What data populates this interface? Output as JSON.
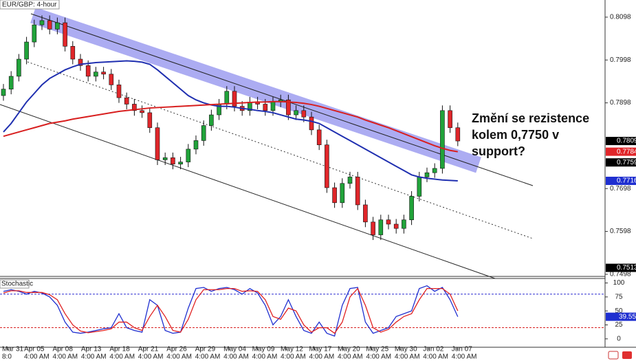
{
  "chart_data": [
    {
      "type": "candlestick",
      "title": "EUR/GBP: 4-hour",
      "annotation": [
        "Změní se rezistence",
        "kolem 0,7750 v",
        "support?"
      ],
      "ylim": [
        0.7493,
        0.8138
      ],
      "yticks": [
        0.8098,
        0.7998,
        0.7898,
        0.7698,
        0.7598,
        0.7498
      ],
      "up_color": "#21a33a",
      "down_color": "#e0262a",
      "open": [
        0.7915,
        0.793,
        0.796,
        0.8,
        0.804,
        0.808,
        0.809,
        0.807,
        0.8085,
        0.803,
        0.8,
        0.7985,
        0.796,
        0.797,
        0.7965,
        0.794,
        0.791,
        0.7895,
        0.788,
        0.7875,
        0.784,
        0.7765,
        0.777,
        0.7755,
        0.776,
        0.779,
        0.781,
        0.7845,
        0.787,
        0.7895,
        0.7925,
        0.789,
        0.788,
        0.79,
        0.7895,
        0.788,
        0.79,
        0.7905,
        0.787,
        0.788,
        0.7865,
        0.7835,
        0.78,
        0.77,
        0.7665,
        0.771,
        0.7725,
        0.766,
        0.762,
        0.759,
        0.7625,
        0.7615,
        0.7605,
        0.7625,
        0.768,
        0.7725,
        0.7735,
        0.7745,
        0.788,
        0.784
      ],
      "high": [
        0.7942,
        0.7972,
        0.8012,
        0.8052,
        0.8092,
        0.8102,
        0.8102,
        0.8097,
        0.8097,
        0.8042,
        0.8012,
        0.7997,
        0.7982,
        0.7982,
        0.7977,
        0.7952,
        0.7922,
        0.7907,
        0.7892,
        0.7887,
        0.7852,
        0.7782,
        0.7782,
        0.7772,
        0.7802,
        0.7822,
        0.7857,
        0.7882,
        0.7907,
        0.7937,
        0.7937,
        0.7902,
        0.7912,
        0.7912,
        0.7907,
        0.7912,
        0.7917,
        0.7917,
        0.7892,
        0.7892,
        0.7877,
        0.7847,
        0.7812,
        0.7712,
        0.7722,
        0.7737,
        0.7737,
        0.7672,
        0.7632,
        0.7637,
        0.7637,
        0.7627,
        0.7637,
        0.7692,
        0.7737,
        0.7747,
        0.7757,
        0.7892,
        0.7892,
        0.7852
      ],
      "low": [
        0.7903,
        0.7918,
        0.7948,
        0.7988,
        0.8028,
        0.8068,
        0.8058,
        0.8058,
        0.8018,
        0.7988,
        0.7973,
        0.7948,
        0.7948,
        0.7953,
        0.7928,
        0.7898,
        0.7883,
        0.7868,
        0.7863,
        0.7828,
        0.7753,
        0.7753,
        0.7743,
        0.7743,
        0.7748,
        0.7778,
        0.7798,
        0.7833,
        0.7858,
        0.7883,
        0.7878,
        0.7868,
        0.7868,
        0.7883,
        0.7868,
        0.7868,
        0.7888,
        0.7858,
        0.7858,
        0.7853,
        0.7823,
        0.7788,
        0.7688,
        0.7653,
        0.7653,
        0.7698,
        0.7648,
        0.7608,
        0.7578,
        0.7578,
        0.7603,
        0.7593,
        0.7593,
        0.7613,
        0.7668,
        0.7713,
        0.7723,
        0.7733,
        0.7828,
        0.7797
      ],
      "close": [
        0.793,
        0.796,
        0.8,
        0.804,
        0.808,
        0.809,
        0.807,
        0.8085,
        0.803,
        0.8,
        0.7985,
        0.796,
        0.797,
        0.7965,
        0.794,
        0.791,
        0.7895,
        0.788,
        0.7875,
        0.784,
        0.7765,
        0.777,
        0.7755,
        0.776,
        0.779,
        0.781,
        0.7845,
        0.787,
        0.7895,
        0.7925,
        0.789,
        0.788,
        0.79,
        0.7895,
        0.788,
        0.79,
        0.7905,
        0.787,
        0.788,
        0.7865,
        0.7835,
        0.78,
        0.77,
        0.7665,
        0.771,
        0.7725,
        0.766,
        0.762,
        0.759,
        0.7625,
        0.7615,
        0.7605,
        0.7625,
        0.768,
        0.7725,
        0.7735,
        0.7745,
        0.788,
        0.784,
        0.7809
      ],
      "lines": [
        {
          "color": "#1f2fb0",
          "values": [
            0.783,
            0.785,
            0.7875,
            0.79,
            0.792,
            0.794,
            0.7955,
            0.7965,
            0.7975,
            0.7982,
            0.7988,
            0.799,
            0.7992,
            0.7993,
            0.7994,
            0.7995,
            0.7996,
            0.7995,
            0.7993,
            0.7988,
            0.7975,
            0.796,
            0.7945,
            0.793,
            0.7915,
            0.7905,
            0.7898,
            0.7893,
            0.789,
            0.789,
            0.7888,
            0.7885,
            0.7883,
            0.788,
            0.7878,
            0.7875,
            0.787,
            0.7865,
            0.786,
            0.7858,
            0.7855,
            0.785,
            0.784,
            0.783,
            0.782,
            0.781,
            0.78,
            0.779,
            0.778,
            0.777,
            0.776,
            0.775,
            0.774,
            0.773,
            0.7725,
            0.7722,
            0.772,
            0.7718,
            0.7717,
            0.7716
          ]
        },
        {
          "color": "#d81e1e",
          "values": [
            0.782,
            0.7825,
            0.783,
            0.7835,
            0.784,
            0.7845,
            0.785,
            0.7853,
            0.7856,
            0.786,
            0.7863,
            0.7866,
            0.7869,
            0.7872,
            0.7875,
            0.7878,
            0.788,
            0.7882,
            0.7884,
            0.7886,
            0.7887,
            0.7888,
            0.7889,
            0.789,
            0.7891,
            0.7892,
            0.7893,
            0.7894,
            0.7895,
            0.7896,
            0.7897,
            0.7898,
            0.7899,
            0.79,
            0.79,
            0.7901,
            0.7901,
            0.79,
            0.7899,
            0.7897,
            0.7894,
            0.789,
            0.7885,
            0.788,
            0.7875,
            0.787,
            0.7865,
            0.7858,
            0.7852,
            0.7846,
            0.784,
            0.7833,
            0.7826,
            0.7819,
            0.7812,
            0.7805,
            0.7798,
            0.7792,
            0.7787,
            0.7784
          ]
        }
      ],
      "price_labels": [
        {
          "value": 0.7809,
          "color": "#000000"
        },
        {
          "value": 0.7784,
          "color": "#e0262a"
        },
        {
          "value": 0.7759,
          "color": "#000000"
        },
        {
          "value": 0.7716,
          "color": "#1f2fd0"
        },
        {
          "value": 0.7513,
          "color": "#000000"
        }
      ],
      "dates": [
        "Mar 31",
        "Apr 05",
        "Apr 08",
        "Apr 13",
        "Apr 18",
        "Apr 21",
        "Apr 26",
        "Apr 29",
        "May 04",
        "May 09",
        "May 12",
        "May 17",
        "May 20",
        "May 25",
        "May 30",
        "Jun 02",
        "Jun 07"
      ],
      "times": [
        "8:0",
        "4:00 AM",
        "4:00 AM",
        "4:00 AM",
        "4:00 AM",
        "4:00 AM",
        "4:00 AM",
        "4:00 AM",
        "4:00 AM",
        "4:00 AM",
        "4:00 AM",
        "4:00 AM",
        "4:00 AM",
        "4:00 AM",
        "4:00 AM",
        "4:00 AM",
        "4:00 AM"
      ]
    },
    {
      "type": "line",
      "title": "Stochastic",
      "ylim": [
        -15,
        108
      ],
      "yticks": [
        100,
        75,
        50,
        25,
        0
      ],
      "levels": [
        {
          "value": 80,
          "color": "#2b2bd0"
        },
        {
          "value": 20,
          "color": "#d82020"
        }
      ],
      "series": [
        {
          "color": "#1f2fd0",
          "values": [
            85,
            88,
            85,
            80,
            85,
            82,
            75,
            60,
            30,
            12,
            10,
            12,
            15,
            18,
            20,
            45,
            20,
            15,
            12,
            70,
            60,
            15,
            10,
            12,
            55,
            90,
            92,
            85,
            90,
            92,
            88,
            80,
            90,
            82,
            60,
            25,
            40,
            70,
            40,
            15,
            10,
            30,
            10,
            5,
            60,
            90,
            92,
            30,
            10,
            15,
            20,
            40,
            45,
            50,
            90,
            95,
            85,
            92,
            70,
            39.55
          ]
        },
        {
          "color": "#e02020",
          "values": [
            82,
            86,
            86,
            83,
            83,
            83,
            79,
            70,
            45,
            25,
            14,
            11,
            13,
            15,
            18,
            30,
            30,
            20,
            15,
            40,
            60,
            40,
            15,
            12,
            35,
            70,
            88,
            88,
            88,
            90,
            90,
            85,
            86,
            85,
            70,
            40,
            35,
            55,
            50,
            25,
            12,
            20,
            20,
            10,
            30,
            75,
            90,
            60,
            20,
            12,
            17,
            30,
            40,
            45,
            70,
            90,
            90,
            90,
            80,
            50
          ]
        }
      ],
      "value_label": 39.55
    }
  ]
}
